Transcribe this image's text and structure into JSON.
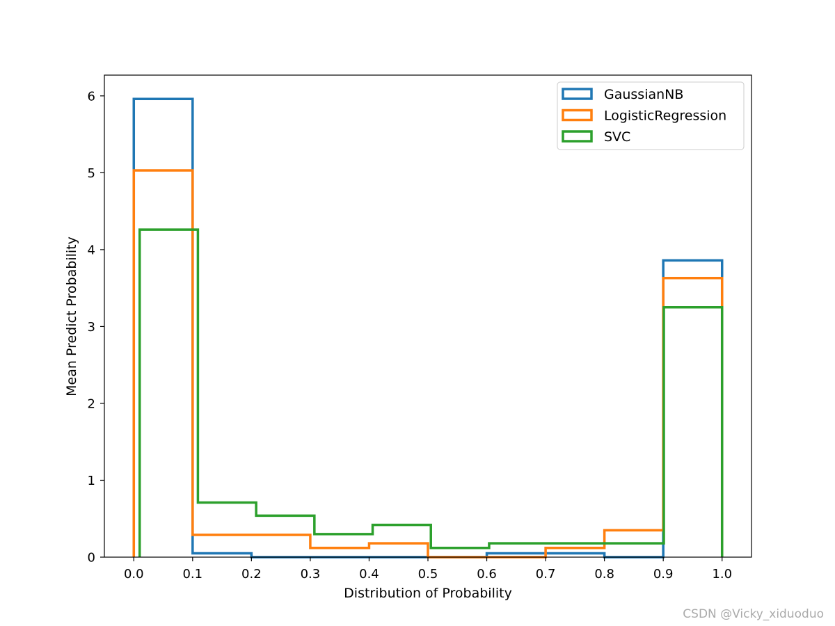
{
  "chart_data": {
    "type": "step-histogram",
    "xlabel": "Distribution of Probability",
    "ylabel": "Mean Predict Probability",
    "xlim": [
      -0.05,
      1.05
    ],
    "ylim": [
      0,
      6.27
    ],
    "xticks": [
      0.0,
      0.1,
      0.2,
      0.3,
      0.4,
      0.5,
      0.6,
      0.7,
      0.8,
      0.9,
      1.0
    ],
    "xtick_labels": [
      "0.0",
      "0.1",
      "0.2",
      "0.3",
      "0.4",
      "0.5",
      "0.6",
      "0.7",
      "0.8",
      "0.9",
      "1.0"
    ],
    "yticks": [
      0,
      1,
      2,
      3,
      4,
      5,
      6
    ],
    "ytick_labels": [
      "0",
      "1",
      "2",
      "3",
      "4",
      "5",
      "6"
    ],
    "grid": false,
    "legend_position": "top-right",
    "series": [
      {
        "name": "GaussianNB",
        "color": "#1f77b4",
        "bin_edges": [
          0.0,
          0.1,
          0.2,
          0.3,
          0.4,
          0.5,
          0.6,
          0.7,
          0.8,
          0.9,
          1.0
        ],
        "values": [
          5.96,
          0.05,
          0.0,
          0.0,
          0.0,
          0.0,
          0.05,
          0.05,
          0.0,
          3.86
        ]
      },
      {
        "name": "LogisticRegression",
        "color": "#ff7f0e",
        "bin_edges": [
          0.0,
          0.1,
          0.2,
          0.3,
          0.4,
          0.5,
          0.6,
          0.7,
          0.8,
          0.9,
          1.0
        ],
        "values": [
          5.03,
          0.29,
          0.29,
          0.12,
          0.18,
          0.0,
          0.0,
          0.12,
          0.35,
          3.63
        ]
      },
      {
        "name": "SVC",
        "color": "#2ca02c",
        "bin_edges": [
          0.01,
          0.109,
          0.208,
          0.307,
          0.406,
          0.505,
          0.604,
          0.703,
          0.802,
          0.901,
          1.0
        ],
        "values": [
          4.26,
          0.71,
          0.54,
          0.3,
          0.42,
          0.12,
          0.18,
          0.18,
          0.18,
          3.25
        ]
      }
    ]
  },
  "watermark": "CSDN @Vicky_xiduoduo"
}
